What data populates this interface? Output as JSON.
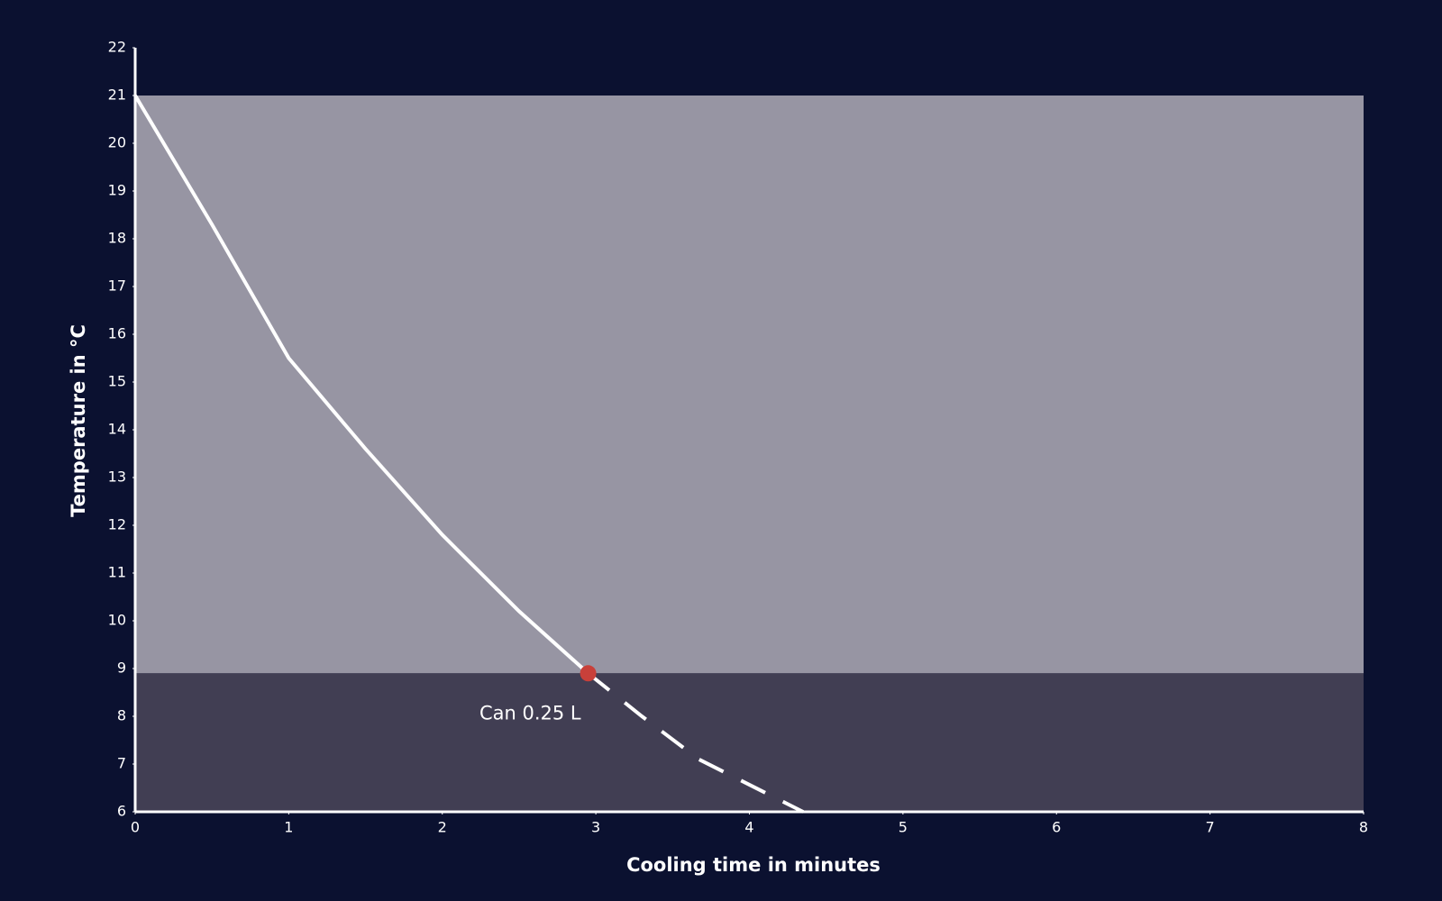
{
  "chart_data": {
    "type": "line",
    "x_label": "Cooling time in minutes",
    "y_label": "Temperature in °C",
    "xlim": [
      0,
      8
    ],
    "xticks": [
      0,
      1,
      2,
      3,
      4,
      5,
      6,
      7,
      8
    ],
    "ylim": [
      6,
      22
    ],
    "yticks": [
      6,
      7,
      8,
      9,
      10,
      11,
      12,
      13,
      14,
      15,
      16,
      17,
      18,
      19,
      20,
      21,
      22
    ],
    "bands": [
      {
        "y0": 8.9,
        "y1": 21,
        "color": "#9795a3"
      },
      {
        "y0": 6,
        "y1": 8.9,
        "color": "#413e53"
      }
    ],
    "series": [
      {
        "x": [
          0,
          0.5,
          1,
          1.5,
          2,
          2.5,
          2.95
        ],
        "values": [
          21,
          18.3,
          15.5,
          13.6,
          11.8,
          10.2,
          8.9
        ],
        "color": "#ffffff",
        "dashed": false
      },
      {
        "x": [
          2.95,
          3.3,
          3.67,
          4.35
        ],
        "values": [
          8.9,
          8.0,
          7.1,
          6
        ],
        "color": "#ffffff",
        "dashed": true
      }
    ],
    "annotation": {
      "x": 2.95,
      "y": 8.9,
      "label": "Can 0.25 L",
      "color": "#c8403a"
    }
  }
}
